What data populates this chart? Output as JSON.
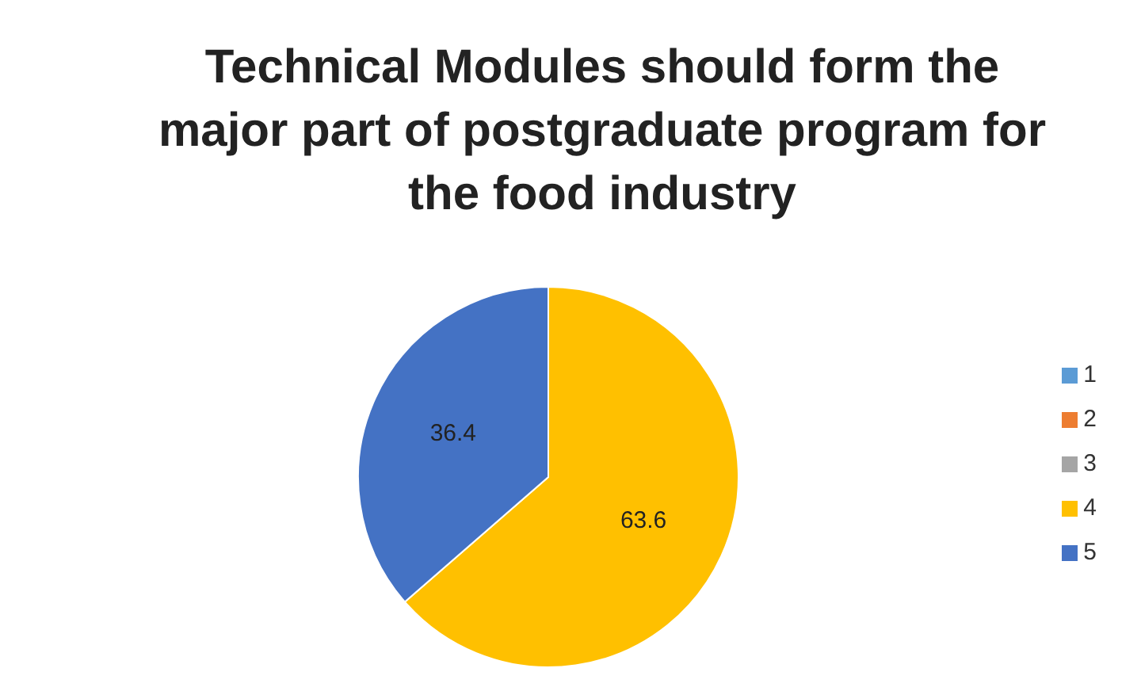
{
  "chart_data": {
    "type": "pie",
    "title": "Technical Modules should form the major part of postgraduate program for the food industry",
    "categories": [
      "1",
      "2",
      "3",
      "4",
      "5"
    ],
    "values": [
      0,
      0,
      0,
      63.6,
      36.4
    ],
    "colors": [
      "#5b9bd5",
      "#ed7d31",
      "#a5a5a5",
      "#ffc000",
      "#4472c4"
    ],
    "value_labels": [
      null,
      null,
      null,
      "63.6",
      "36.4"
    ],
    "legend": "right"
  }
}
